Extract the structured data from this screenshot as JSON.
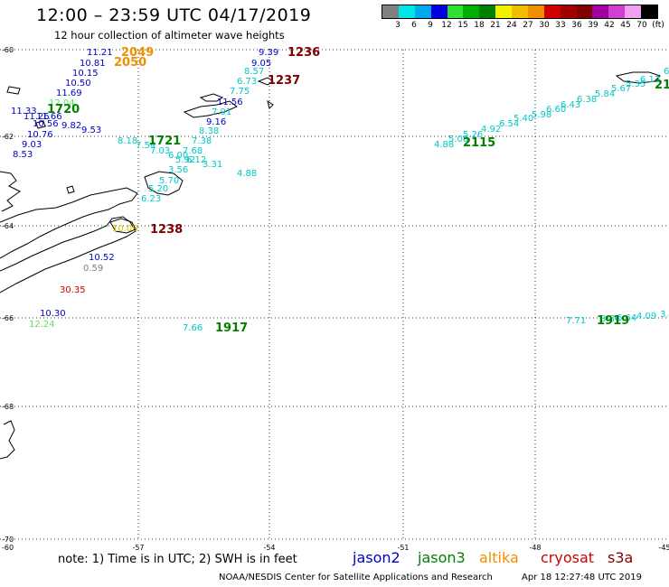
{
  "header": {
    "title": "12:00 – 23:59 UTC 04/17/2019",
    "subtitle": "12 hour collection of altimeter wave heights"
  },
  "legend": {
    "colors": [
      "#808080",
      "#00e5e5",
      "#00a8f0",
      "#0000e0",
      "#30e030",
      "#00b000",
      "#008000",
      "#f0f000",
      "#f0c000",
      "#f09000",
      "#d00000",
      "#a00000",
      "#800000",
      "#a000a0",
      "#d040d0",
      "#f0a0f0",
      "#000000"
    ],
    "ticks": [
      "3",
      "6",
      "9",
      "12",
      "15",
      "18",
      "21",
      "24",
      "27",
      "30",
      "33",
      "36",
      "39",
      "42",
      "45",
      "70",
      "(ft)"
    ]
  },
  "axes": {
    "lat_labels": [
      "-60",
      "-62",
      "-64",
      "-66",
      "-68",
      "-70"
    ],
    "lon_labels": [
      "-57",
      "-54",
      "-51",
      "-48",
      "-45"
    ],
    "corner_bottom": "-60"
  },
  "satellites": {
    "jason2": "#0000c8",
    "jason3": "#008000",
    "altika": "#f09000",
    "cryosat": "#d00000",
    "s3a": "#800000",
    "low": "#808080",
    "lowcyan": "#00c8c8",
    "lightgreen": "#60e060",
    "yellow": "#d8c000"
  },
  "wave_heights": [
    {
      "t": "11.21",
      "c": "jason2"
    },
    {
      "t": "10.81",
      "c": "jason2"
    },
    {
      "t": "10.15",
      "c": "jason2"
    },
    {
      "t": "10.50",
      "c": "jason2"
    },
    {
      "t": "11.69",
      "c": "jason2"
    },
    {
      "t": "12.04",
      "c": "lightgreen"
    },
    {
      "t": "11.33",
      "c": "jason2"
    },
    {
      "t": "11.26",
      "c": "jason2"
    },
    {
      "t": "11.66",
      "c": "jason2"
    },
    {
      "t": "10.56",
      "c": "jason2"
    },
    {
      "t": "9.82",
      "c": "jason2"
    },
    {
      "t": "9.53",
      "c": "jason2"
    },
    {
      "t": "10.76",
      "c": "jason2"
    },
    {
      "t": "9.03",
      "c": "jason2"
    },
    {
      "t": "8.53",
      "c": "jason2"
    },
    {
      "t": "9.39",
      "c": "jason2"
    },
    {
      "t": "9.05",
      "c": "jason2"
    },
    {
      "t": "8.57",
      "c": "lowcyan"
    },
    {
      "t": "6.73",
      "c": "lowcyan"
    },
    {
      "t": "7.75",
      "c": "lowcyan"
    },
    {
      "t": "11.56",
      "c": "jason2"
    },
    {
      "t": "7.91",
      "c": "lowcyan"
    },
    {
      "t": "9.16",
      "c": "jason2"
    },
    {
      "t": "8.38",
      "c": "lowcyan"
    },
    {
      "t": "7.38",
      "c": "lowcyan"
    },
    {
      "t": "7.68",
      "c": "lowcyan"
    },
    {
      "t": "8.18",
      "c": "lowcyan"
    },
    {
      "t": "7.54",
      "c": "lowcyan"
    },
    {
      "t": "7.03",
      "c": "lowcyan"
    },
    {
      "t": "6.00",
      "c": "lowcyan"
    },
    {
      "t": "5.92",
      "c": "lowcyan"
    },
    {
      "t": "6.12",
      "c": "lowcyan"
    },
    {
      "t": "3.31",
      "c": "lowcyan"
    },
    {
      "t": "3.56",
      "c": "lowcyan"
    },
    {
      "t": "4.88",
      "c": "lowcyan"
    },
    {
      "t": "5.70",
      "c": "lowcyan"
    },
    {
      "t": "5.20",
      "c": "lowcyan"
    },
    {
      "t": "6.23",
      "c": "lowcyan"
    },
    {
      "t": "10.09",
      "c": "yellow"
    },
    {
      "t": "10.52",
      "c": "jason2"
    },
    {
      "t": "0.59",
      "c": "low"
    },
    {
      "t": "30.35",
      "c": "cryosat"
    },
    {
      "t": "10.30",
      "c": "jason2"
    },
    {
      "t": "12.24",
      "c": "lightgreen"
    },
    {
      "t": "7.66",
      "c": "lowcyan"
    },
    {
      "t": "4.88",
      "c": "lowcyan"
    },
    {
      "t": "5.08",
      "c": "lowcyan"
    },
    {
      "t": "5.26",
      "c": "lowcyan"
    },
    {
      "t": "4.92",
      "c": "lowcyan"
    },
    {
      "t": "6.54",
      "c": "lowcyan"
    },
    {
      "t": "5.40",
      "c": "lowcyan"
    },
    {
      "t": "5.98",
      "c": "lowcyan"
    },
    {
      "t": "6.60",
      "c": "lowcyan"
    },
    {
      "t": "6.43",
      "c": "lowcyan"
    },
    {
      "t": "6.38",
      "c": "lowcyan"
    },
    {
      "t": "5.84",
      "c": "lowcyan"
    },
    {
      "t": "5.67",
      "c": "lowcyan"
    },
    {
      "t": "5.35",
      "c": "lowcyan"
    },
    {
      "t": "6.12",
      "c": "lowcyan"
    },
    {
      "t": "6",
      "c": "lowcyan"
    },
    {
      "t": "7.71",
      "c": "lowcyan"
    },
    {
      "t": "8.84",
      "c": "lowcyan"
    },
    {
      "t": "6.64",
      "c": "lowcyan"
    },
    {
      "t": "4.09",
      "c": "lowcyan"
    },
    {
      "t": "3.",
      "c": "lowcyan"
    }
  ],
  "time_labels": [
    {
      "t": "2049",
      "c": "altika"
    },
    {
      "t": "2050",
      "c": "altika"
    },
    {
      "t": "1236",
      "c": "s3a"
    },
    {
      "t": "1237",
      "c": "s3a"
    },
    {
      "t": "1720",
      "c": "jason3"
    },
    {
      "t": "1721",
      "c": "jason3"
    },
    {
      "t": "1238",
      "c": "s3a"
    },
    {
      "t": "1917",
      "c": "jason3"
    },
    {
      "t": "2115",
      "c": "jason3"
    },
    {
      "t": "1919",
      "c": "jason3"
    },
    {
      "t": "21",
      "c": "jason3"
    }
  ],
  "footer": {
    "note": "note:  1) Time is in UTC;  2) SWH is in feet",
    "sat_jason2": "jason2",
    "sat_jason3": "jason3",
    "sat_altika": "altika",
    "sat_cryosat": "cryosat",
    "sat_s3a": "s3a",
    "credit": "NOAA/NESDIS Center for Satellite Applications and Research",
    "stamp": "Apr 18 12:27:48 UTC 2019"
  }
}
